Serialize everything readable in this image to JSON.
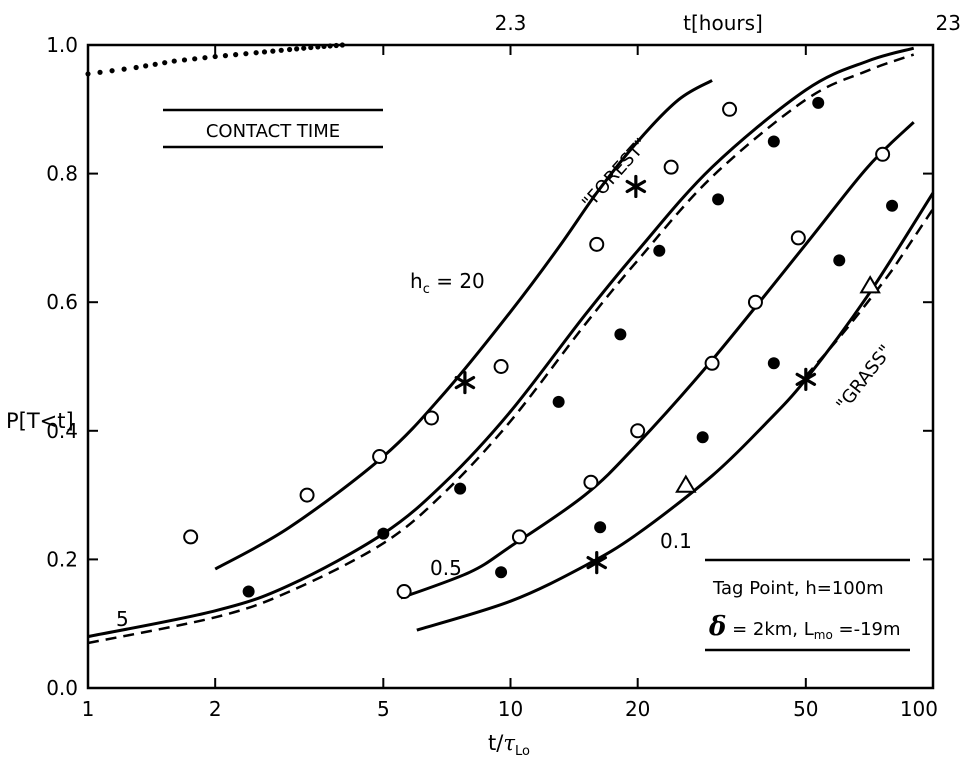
{
  "chart_data": {
    "type": "line",
    "xscale": "log",
    "xlim": [
      1,
      100
    ],
    "ylim": [
      0,
      1
    ],
    "xlabel": "t/",
    "xlabel_symbol": "τ",
    "xlabel_sub": "Lo",
    "ylabel": "P[T<t]",
    "x_ticks": [
      1,
      2,
      5,
      10,
      20,
      50,
      100
    ],
    "x_tick_labels": [
      "1",
      "2",
      "5",
      "10",
      "20",
      "50",
      "100"
    ],
    "y_ticks": [
      0,
      0.2,
      0.4,
      0.6,
      0.8,
      1.0
    ],
    "y_tick_labels": [
      "0.0",
      "0.2",
      "0.4",
      "0.6",
      "0.8",
      "1.0"
    ],
    "top_axis": {
      "label": "t[hours]",
      "ticks": [
        10,
        100
      ],
      "tick_labels": [
        "2.3",
        "23"
      ]
    },
    "legend_box": {
      "title": "CONTACT TIME",
      "position": "top-left"
    },
    "info_box": {
      "line1": "Tag Point, h=100m",
      "line2_delta": "δ",
      "line2_rest": " = 2km, L",
      "line2_sub": "mo",
      "line2_end": " =-19m",
      "position": "bottom-right"
    },
    "annotations": {
      "forest": "\"FOREST\"",
      "grass": "\"GRASS\"",
      "hc": "h",
      "hc_sub": "c",
      "hc_value": " = 20",
      "label_5": "5",
      "label_05": "0.5",
      "label_01": "0.1"
    },
    "series": [
      {
        "style": "solid",
        "x": [
          2.0,
          3.0,
          5.0,
          7.0,
          10.0,
          13.0,
          16.0,
          20.0,
          25.0,
          30.0
        ],
        "y": [
          0.185,
          0.25,
          0.36,
          0.46,
          0.585,
          0.685,
          0.77,
          0.85,
          0.915,
          0.945
        ]
      },
      {
        "style": "solid",
        "x": [
          1.0,
          2.0,
          3.0,
          5.0,
          7.0,
          10.0,
          15.0,
          20.0,
          30.0,
          50.0,
          70.0,
          90.0
        ],
        "y": [
          0.08,
          0.12,
          0.16,
          0.24,
          0.32,
          0.43,
          0.58,
          0.68,
          0.81,
          0.93,
          0.975,
          0.995
        ]
      },
      {
        "style": "dashed",
        "x": [
          1.0,
          2.0,
          3.0,
          5.0,
          7.0,
          10.0,
          15.0,
          20.0,
          30.0,
          50.0,
          70.0,
          90.0
        ],
        "y": [
          0.07,
          0.11,
          0.15,
          0.225,
          0.305,
          0.415,
          0.565,
          0.665,
          0.795,
          0.915,
          0.96,
          0.985
        ]
      },
      {
        "style": "solid",
        "x": [
          5.5,
          8.0,
          10.0,
          15.0,
          20.0,
          30.0,
          50.0,
          70.0,
          90.0
        ],
        "y": [
          0.14,
          0.18,
          0.22,
          0.3,
          0.38,
          0.51,
          0.69,
          0.81,
          0.88
        ]
      },
      {
        "style": "solid",
        "x": [
          6.0,
          10.0,
          15.0,
          20.0,
          30.0,
          40.0,
          50.0,
          70.0,
          100.0
        ],
        "y": [
          0.09,
          0.135,
          0.19,
          0.24,
          0.33,
          0.41,
          0.48,
          0.61,
          0.77
        ]
      },
      {
        "style": "dashed",
        "x": [
          50.0,
          60.0,
          70.0,
          80.0,
          90.0,
          100.0
        ],
        "y": [
          0.485,
          0.545,
          0.6,
          0.65,
          0.7,
          0.745
        ]
      },
      {
        "style": "dotted",
        "x": [
          1.0,
          1.3,
          1.6,
          2.0,
          2.5,
          3.0,
          3.5,
          4.0
        ],
        "y": [
          0.955,
          0.965,
          0.975,
          0.982,
          0.988,
          0.993,
          0.997,
          1.0
        ]
      }
    ],
    "points": {
      "open_circles": [
        [
          1.75,
          0.235
        ],
        [
          3.3,
          0.3
        ],
        [
          4.9,
          0.36
        ],
        [
          6.5,
          0.42
        ],
        [
          9.5,
          0.5
        ],
        [
          5.6,
          0.15
        ],
        [
          10.5,
          0.235
        ],
        [
          15.5,
          0.32
        ],
        [
          20.0,
          0.4
        ],
        [
          16.0,
          0.69
        ],
        [
          24.0,
          0.81
        ],
        [
          33.0,
          0.9
        ],
        [
          30.0,
          0.505
        ],
        [
          38.0,
          0.6
        ],
        [
          48.0,
          0.7
        ],
        [
          76.0,
          0.83
        ]
      ],
      "filled_circles": [
        [
          2.4,
          0.15
        ],
        [
          5.0,
          0.24
        ],
        [
          7.6,
          0.31
        ],
        [
          9.5,
          0.18
        ],
        [
          13.0,
          0.445
        ],
        [
          16.3,
          0.25
        ],
        [
          18.2,
          0.55
        ],
        [
          22.5,
          0.68
        ],
        [
          28.5,
          0.39
        ],
        [
          31.0,
          0.76
        ],
        [
          42.0,
          0.85
        ],
        [
          42.0,
          0.505
        ],
        [
          53.5,
          0.91
        ],
        [
          60.0,
          0.665
        ],
        [
          80.0,
          0.75
        ]
      ],
      "stars": [
        [
          7.8,
          0.475
        ],
        [
          16.0,
          0.195
        ],
        [
          19.8,
          0.78
        ],
        [
          50.0,
          0.48
        ]
      ],
      "triangles": [
        [
          26.0,
          0.315
        ],
        [
          71.0,
          0.625
        ]
      ]
    }
  }
}
